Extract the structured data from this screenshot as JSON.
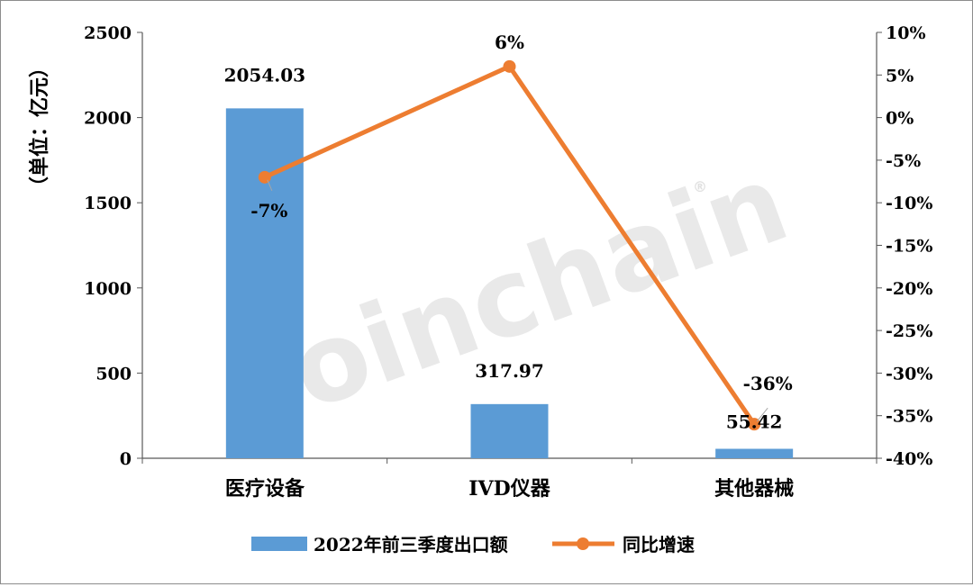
{
  "chart_data": {
    "type": "bar",
    "categories": [
      "医疗设备",
      "IVD仪器",
      "其他器械"
    ],
    "series": [
      {
        "name": "2022年前三季度出口额",
        "type": "bar",
        "axis": "left",
        "values": [
          2054.03,
          317.97,
          55.42
        ],
        "value_labels": [
          "2054.03",
          "317.97",
          "55.42"
        ],
        "color": "#5B9BD5"
      },
      {
        "name": "同比增速",
        "type": "line",
        "axis": "right",
        "values": [
          -7,
          6,
          -36
        ],
        "value_labels": [
          "-7%",
          "6%",
          "-36%"
        ],
        "color": "#ED7D31"
      }
    ],
    "ylabel": "（单位：亿元）",
    "ylim": [
      0,
      2500
    ],
    "yticks": [
      0,
      500,
      1000,
      1500,
      2000,
      2500
    ],
    "y2lim": [
      -40,
      10
    ],
    "y2ticks": [
      10,
      5,
      0,
      -5,
      -10,
      -15,
      -20,
      -25,
      -30,
      -35,
      -40
    ],
    "y2tick_labels": [
      "10%",
      "5%",
      "0%",
      "-5%",
      "-10%",
      "-15%",
      "-20%",
      "-25%",
      "-30%",
      "-35%",
      "-40%"
    ],
    "legend_position": "bottom",
    "grid": false
  },
  "watermark": "Joinchain",
  "watermark_mark": "®"
}
